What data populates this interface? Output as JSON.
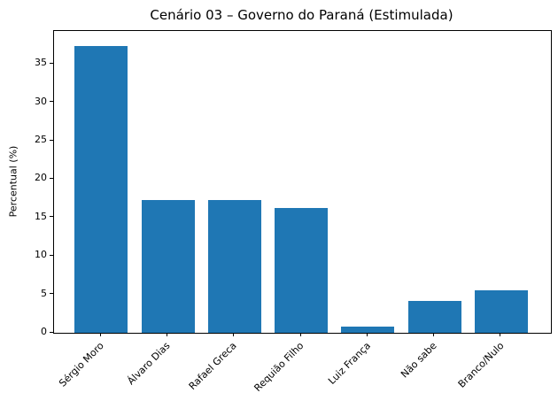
{
  "chart_data": {
    "type": "bar",
    "title": "Cenário 03 – Governo do Paraná (Estimulada)",
    "xlabel": "",
    "ylabel": "Percentual (%)",
    "categories": [
      "Sérgio Moro",
      "Álvaro Dias",
      "Rafael Greca",
      "Requião Filho",
      "Luiz França",
      "Não sabe",
      "Branco/Nulo"
    ],
    "values": [
      37.4,
      17.3,
      17.3,
      16.2,
      0.8,
      4.1,
      5.5
    ],
    "yticks": [
      0,
      5,
      10,
      15,
      20,
      25,
      30,
      35
    ],
    "ylim": [
      0,
      39.3
    ],
    "bar_color": "#1f77b4",
    "axis_color": "#000000",
    "background_color": "#ffffff",
    "x_tick_rotation": 45,
    "grid": false,
    "legend": null
  }
}
